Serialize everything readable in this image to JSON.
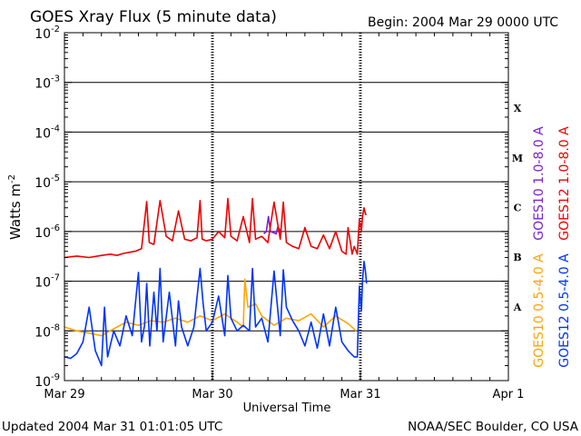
{
  "header": {
    "title": "GOES Xray Flux (5 minute data)",
    "begin": "Begin:  2004 Mar 29 0000 UTC"
  },
  "footer": {
    "updated": "Updated 2004 Mar 31 01:01:05 UTC",
    "credit": "NOAA/SEC Boulder, CO USA"
  },
  "chart_data": {
    "type": "line",
    "title": "GOES Xray Flux (5 minute data)",
    "xlabel": "Universal Time",
    "ylabel": "Watts m-2",
    "ylabel_parts": {
      "base": "Watts m",
      "sup": "-2"
    },
    "yscale": "log",
    "ylim": [
      1e-09,
      0.01
    ],
    "xlim": [
      "2004-03-29 00:00",
      "2004-04-01 00:00"
    ],
    "xticks": [
      "Mar 29",
      "Mar 30",
      "Mar 31",
      "Apr 1"
    ],
    "yticks": [
      {
        "base": "10",
        "exp": "-2"
      },
      {
        "base": "10",
        "exp": "-3"
      },
      {
        "base": "10",
        "exp": "-4"
      },
      {
        "base": "10",
        "exp": "-5"
      },
      {
        "base": "10",
        "exp": "-6"
      },
      {
        "base": "10",
        "exp": "-7"
      },
      {
        "base": "10",
        "exp": "-8"
      },
      {
        "base": "10",
        "exp": "-9"
      }
    ],
    "flare_classes": [
      "X",
      "M",
      "C",
      "B",
      "A"
    ],
    "grid": "horizontal lines at each decade, vertical dashed lines at each day",
    "legend_position": "right, rotated",
    "colors": {
      "goes10_long": "#7a1fd6",
      "goes12_long": "#ee0000",
      "goes10_short": "#ffa500",
      "goes12_short": "#0033ff"
    },
    "series": [
      {
        "name": "GOES10 1.0-8.0 A",
        "color_key": "goes10_long",
        "x": [
          "2004-03-30 08:20",
          "2004-03-30 08:45",
          "2004-03-30 09:05",
          "2004-03-30 09:25",
          "2004-03-30 10:20",
          "2004-03-30 10:35",
          "2004-03-30 10:55",
          "2004-03-30 11:10"
        ],
        "y": [
          9e-07,
          1e-06,
          2e-06,
          1e-06,
          9e-07,
          1.2e-06,
          1.1e-06,
          9e-07
        ]
      },
      {
        "name": "GOES12 1.0-8.0 A",
        "color_key": "goes12_long",
        "x": [
          "2004-03-29 00:00",
          "2004-03-29 02:00",
          "2004-03-29 04:00",
          "2004-03-29 06:00",
          "2004-03-29 07:30",
          "2004-03-29 08:30",
          "2004-03-29 09:30",
          "2004-03-29 10:30",
          "2004-03-29 11:30",
          "2004-03-29 12:30",
          "2004-03-29 13:20",
          "2004-03-29 13:45",
          "2004-03-29 14:30",
          "2004-03-29 15:30",
          "2004-03-29 16:30",
          "2004-03-29 17:30",
          "2004-03-29 18:30",
          "2004-03-29 19:30",
          "2004-03-29 20:30",
          "2004-03-29 21:30",
          "2004-03-29 22:00",
          "2004-03-29 22:20",
          "2004-03-29 23:00",
          "2004-03-30 00:00",
          "2004-03-30 01:00",
          "2004-03-30 02:00",
          "2004-03-30 02:30",
          "2004-03-30 03:00",
          "2004-03-30 04:00",
          "2004-03-30 05:00",
          "2004-03-30 06:00",
          "2004-03-30 06:30",
          "2004-03-30 07:00",
          "2004-03-30 08:00",
          "2004-03-30 09:00",
          "2004-03-30 10:00",
          "2004-03-30 11:00",
          "2004-03-30 11:30",
          "2004-03-30 12:00",
          "2004-03-30 13:00",
          "2004-03-30 14:00",
          "2004-03-30 15:00",
          "2004-03-30 16:00",
          "2004-03-30 17:00",
          "2004-03-30 18:00",
          "2004-03-30 19:00",
          "2004-03-30 20:00",
          "2004-03-30 21:00",
          "2004-03-30 21:40",
          "2004-03-30 22:00",
          "2004-03-30 22:40",
          "2004-03-30 23:00",
          "2004-03-30 23:30",
          "2004-03-30 23:50",
          "2004-03-31 00:10",
          "2004-03-31 00:20",
          "2004-03-31 00:35",
          "2004-03-31 00:50",
          "2004-03-31 01:00"
        ],
        "y": [
          3e-07,
          3.2e-07,
          3e-07,
          3.3e-07,
          3.5e-07,
          3.3e-07,
          3.6e-07,
          3.8e-07,
          4e-07,
          4.5e-07,
          4e-06,
          6e-07,
          5.5e-07,
          4.2e-06,
          8e-07,
          6.5e-07,
          2.6e-06,
          7e-07,
          6.5e-07,
          7.5e-07,
          4.2e-06,
          7e-07,
          6.5e-07,
          7e-07,
          1e-06,
          7.5e-07,
          4.6e-06,
          8e-07,
          6.5e-07,
          2e-06,
          6e-07,
          4.6e-06,
          7e-07,
          8e-07,
          6e-07,
          3.9e-06,
          7e-07,
          3.9e-06,
          6e-07,
          5e-07,
          4.5e-07,
          1.2e-06,
          5e-07,
          4.5e-07,
          8.5e-07,
          4.5e-07,
          1e-06,
          4e-07,
          3.5e-07,
          1.2e-06,
          3.5e-07,
          5e-07,
          3.5e-07,
          1.8e-06,
          1e-06,
          2e-06,
          3e-06,
          2.2e-06,
          2.2e-06
        ]
      },
      {
        "name": "GOES10 0.5-4.0 A",
        "color_key": "goes10_short",
        "x": [
          "2004-03-29 00:00",
          "2004-03-29 02:00",
          "2004-03-29 04:00",
          "2004-03-29 06:00",
          "2004-03-29 08:00",
          "2004-03-29 10:00",
          "2004-03-29 12:00",
          "2004-03-29 14:00",
          "2004-03-29 16:00",
          "2004-03-29 18:00",
          "2004-03-29 20:00",
          "2004-03-29 22:00",
          "2004-03-30 00:00",
          "2004-03-30 02:00",
          "2004-03-30 04:00",
          "2004-03-30 05:00",
          "2004-03-30 05:15",
          "2004-03-30 05:45",
          "2004-03-30 07:00",
          "2004-03-30 08:00",
          "2004-03-30 10:00",
          "2004-03-30 12:00",
          "2004-03-30 14:00",
          "2004-03-30 16:00",
          "2004-03-30 18:00",
          "2004-03-30 20:00",
          "2004-03-30 22:00",
          "2004-03-30 23:20"
        ],
        "y": [
          1.2e-08,
          1e-08,
          9e-09,
          8e-09,
          1.1e-08,
          1.5e-08,
          1.3e-08,
          1.6e-08,
          1.5e-08,
          1.8e-08,
          1.5e-08,
          2e-08,
          1.6e-08,
          2.2e-08,
          1.5e-08,
          1.2e-08,
          1.1e-07,
          3e-08,
          3.5e-08,
          2e-08,
          1.3e-08,
          1.8e-08,
          1.6e-08,
          2.2e-08,
          1.2e-08,
          2e-08,
          1.4e-08,
          1e-08
        ]
      },
      {
        "name": "GOES12 0.5-4.0 A",
        "color_key": "goes12_short",
        "x": [
          "2004-03-29 00:00",
          "2004-03-29 01:00",
          "2004-03-29 02:00",
          "2004-03-29 03:00",
          "2004-03-29 04:00",
          "2004-03-29 05:00",
          "2004-03-29 06:00",
          "2004-03-29 06:30",
          "2004-03-29 07:00",
          "2004-03-29 08:00",
          "2004-03-29 09:00",
          "2004-03-29 10:00",
          "2004-03-29 11:00",
          "2004-03-29 12:00",
          "2004-03-29 12:30",
          "2004-03-29 13:00",
          "2004-03-29 13:20",
          "2004-03-29 13:50",
          "2004-03-29 14:30",
          "2004-03-29 15:00",
          "2004-03-29 15:30",
          "2004-03-29 16:00",
          "2004-03-29 17:00",
          "2004-03-29 18:00",
          "2004-03-29 18:30",
          "2004-03-29 19:00",
          "2004-03-29 20:00",
          "2004-03-29 21:00",
          "2004-03-29 22:00",
          "2004-03-29 22:30",
          "2004-03-29 23:00",
          "2004-03-30 00:00",
          "2004-03-30 01:00",
          "2004-03-30 02:00",
          "2004-03-30 02:30",
          "2004-03-30 03:00",
          "2004-03-30 04:00",
          "2004-03-30 05:00",
          "2004-03-30 06:00",
          "2004-03-30 06:30",
          "2004-03-30 07:00",
          "2004-03-30 08:00",
          "2004-03-30 09:00",
          "2004-03-30 10:00",
          "2004-03-30 11:00",
          "2004-03-30 11:30",
          "2004-03-30 12:00",
          "2004-03-30 13:00",
          "2004-03-30 14:00",
          "2004-03-30 15:00",
          "2004-03-30 16:00",
          "2004-03-30 17:00",
          "2004-03-30 18:00",
          "2004-03-30 19:00",
          "2004-03-30 20:00",
          "2004-03-30 21:00",
          "2004-03-30 22:00",
          "2004-03-30 23:00",
          "2004-03-30 23:30",
          "2004-03-30 23:50",
          "2004-03-31 00:10",
          "2004-03-31 00:20",
          "2004-03-31 00:35",
          "2004-03-31 00:50",
          "2004-03-31 01:00"
        ],
        "y": [
          3e-09,
          2.8e-09,
          3.5e-09,
          6e-09,
          3e-08,
          4e-09,
          2e-09,
          3e-08,
          3e-09,
          1e-08,
          5e-09,
          2e-08,
          8e-09,
          1.5e-07,
          6e-09,
          1.3e-08,
          9e-08,
          5e-09,
          6e-08,
          1e-08,
          1.8e-07,
          6e-09,
          6e-08,
          5e-09,
          4e-08,
          1.2e-08,
          5e-09,
          1.2e-08,
          1.8e-07,
          3.5e-08,
          1e-08,
          1.5e-08,
          5e-08,
          8e-09,
          1.3e-07,
          1.8e-08,
          1e-08,
          1.3e-08,
          1e-08,
          1.8e-07,
          1.2e-08,
          1.8e-08,
          6e-09,
          1.6e-07,
          8e-09,
          1.7e-07,
          3e-08,
          1.6e-08,
          1e-08,
          5e-09,
          1.5e-08,
          4.5e-09,
          2.2e-08,
          5e-09,
          3e-08,
          6e-09,
          4e-09,
          3e-09,
          3e-09,
          8e-08,
          2.5e-08,
          1e-07,
          2.5e-07,
          1.5e-07,
          9e-08
        ]
      }
    ]
  }
}
